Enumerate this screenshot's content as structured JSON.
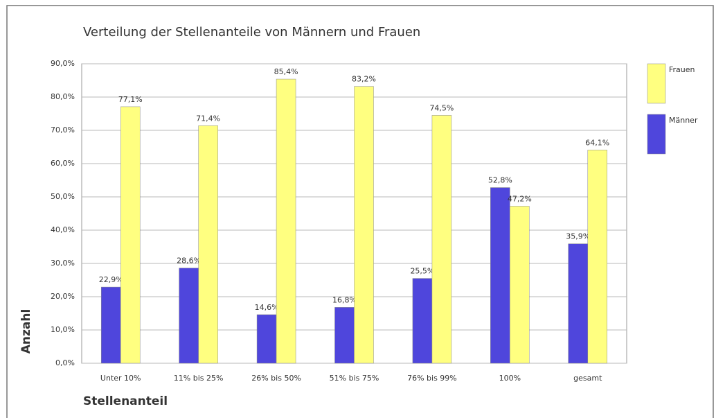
{
  "chart_data": {
    "type": "bar",
    "title": "Verteilung der Stellenanteile von Männern und Frauen",
    "x_label": "Stellenanteil",
    "y_label": "Anzahl",
    "categories": [
      "Unter 10%",
      "11% bis 25%",
      "26% bis 50%",
      "51% bis 75%",
      "76% bis 99%",
      "100%",
      "gesamt"
    ],
    "series": [
      {
        "name": "Männer",
        "color": "#4f46dc",
        "values": [
          22.9,
          28.6,
          14.6,
          16.8,
          25.5,
          52.8,
          35.9
        ],
        "value_labels": [
          "22,9%",
          "28,6%",
          "14,6%",
          "16,8%",
          "25,5%",
          "52,8%",
          "35,9%"
        ]
      },
      {
        "name": "Frauen",
        "color": "#ffff80",
        "values": [
          77.1,
          71.4,
          85.4,
          83.2,
          74.5,
          47.2,
          64.1
        ],
        "value_labels": [
          "77,1%",
          "71,4%",
          "85,4%",
          "83,2%",
          "74,5%",
          "47,2%",
          "64,1%"
        ]
      }
    ],
    "ylim": [
      0,
      90
    ],
    "yticks": [
      {
        "value": 0,
        "label": "0,0%"
      },
      {
        "value": 10,
        "label": "10,0%"
      },
      {
        "value": 20,
        "label": "20,0%"
      },
      {
        "value": 30,
        "label": "30,0%"
      },
      {
        "value": 40,
        "label": "40,0%"
      },
      {
        "value": 50,
        "label": "50,0%"
      },
      {
        "value": 60,
        "label": "60,0%"
      },
      {
        "value": 70,
        "label": "70,0%"
      },
      {
        "value": 80,
        "label": "80,0%"
      },
      {
        "value": 90,
        "label": "90,0%"
      }
    ],
    "grid": true,
    "legend": "right"
  }
}
